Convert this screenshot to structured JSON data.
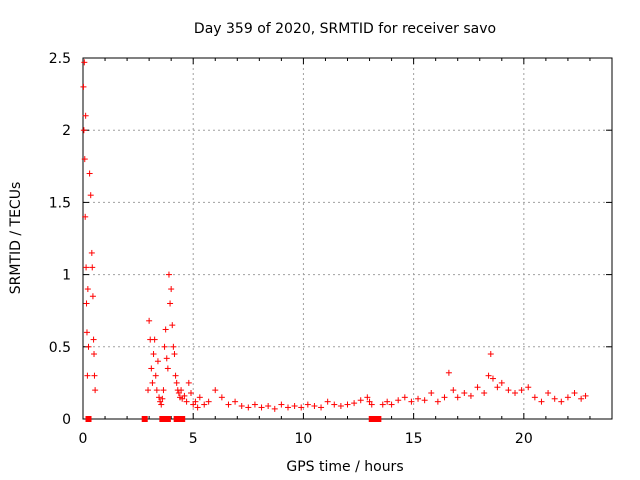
{
  "chart_data": {
    "type": "scatter",
    "title": "Day 359 of 2020, SRMTID for receiver savo",
    "xlabel": "GPS time / hours",
    "ylabel": "SRMTID / TECUs",
    "xlim": [
      0,
      24
    ],
    "ylim": [
      0,
      2.5
    ],
    "xticks": [
      0,
      5,
      10,
      15,
      20
    ],
    "yticks": [
      0,
      0.5,
      1,
      1.5,
      2,
      2.5
    ],
    "xtick_labels": [
      "0",
      "5",
      "10",
      "15",
      "20"
    ],
    "ytick_labels": [
      "0",
      "0.5",
      "1",
      "1.5",
      "2",
      "2.5"
    ],
    "grid": true,
    "marker": "+",
    "series": [
      {
        "name": "SRMTID",
        "color": "#ff0000",
        "x": [
          0.02,
          0.04,
          0.06,
          0.08,
          0.1,
          0.12,
          0.14,
          0.16,
          0.18,
          0.2,
          0.22,
          0.25,
          0.3,
          0.35,
          0.4,
          0.42,
          0.45,
          0.48,
          0.5,
          0.52,
          0.55,
          2.95,
          3.0,
          3.05,
          3.1,
          3.15,
          3.2,
          3.25,
          3.3,
          3.35,
          3.4,
          3.45,
          3.5,
          3.55,
          3.6,
          3.65,
          3.7,
          3.75,
          3.8,
          3.85,
          3.9,
          3.95,
          4.0,
          4.05,
          4.1,
          4.15,
          4.2,
          4.25,
          4.3,
          4.35,
          4.4,
          4.45,
          4.5,
          4.6,
          4.7,
          4.8,
          4.9,
          5.0,
          5.1,
          5.2,
          5.3,
          5.5,
          5.7,
          6.0,
          6.3,
          6.6,
          6.9,
          7.2,
          7.5,
          7.8,
          8.1,
          8.4,
          8.7,
          9.0,
          9.3,
          9.6,
          9.9,
          10.2,
          10.5,
          10.8,
          11.1,
          11.4,
          11.7,
          12.0,
          12.3,
          12.6,
          12.9,
          13.0,
          13.1,
          13.6,
          13.8,
          14.0,
          14.3,
          14.6,
          14.9,
          15.2,
          15.5,
          15.8,
          16.1,
          16.4,
          16.6,
          16.8,
          17.0,
          17.3,
          17.6,
          17.9,
          18.2,
          18.4,
          18.5,
          18.6,
          18.8,
          19.0,
          19.3,
          19.6,
          19.9,
          20.2,
          20.5,
          20.8,
          21.1,
          21.4,
          21.7,
          22.0,
          22.3,
          22.6,
          22.8
        ],
        "y": [
          2.3,
          2.0,
          2.47,
          1.8,
          1.4,
          2.1,
          1.05,
          0.8,
          0.6,
          0.3,
          0.9,
          0.5,
          1.7,
          1.55,
          1.15,
          1.05,
          0.85,
          0.55,
          0.45,
          0.3,
          0.2,
          0.2,
          0.68,
          0.55,
          0.35,
          0.25,
          0.45,
          0.55,
          0.3,
          0.2,
          0.4,
          0.15,
          0.12,
          0.1,
          0.14,
          0.2,
          0.5,
          0.62,
          0.42,
          0.35,
          1.0,
          0.8,
          0.9,
          0.65,
          0.5,
          0.45,
          0.3,
          0.25,
          0.2,
          0.18,
          0.15,
          0.2,
          0.14,
          0.16,
          0.12,
          0.25,
          0.18,
          0.1,
          0.12,
          0.08,
          0.15,
          0.1,
          0.12,
          0.2,
          0.15,
          0.1,
          0.12,
          0.09,
          0.08,
          0.1,
          0.08,
          0.09,
          0.07,
          0.1,
          0.08,
          0.09,
          0.08,
          0.1,
          0.09,
          0.08,
          0.12,
          0.1,
          0.09,
          0.1,
          0.11,
          0.13,
          0.15,
          0.12,
          0.1,
          0.1,
          0.12,
          0.1,
          0.13,
          0.15,
          0.12,
          0.14,
          0.13,
          0.18,
          0.12,
          0.15,
          0.32,
          0.2,
          0.15,
          0.18,
          0.16,
          0.22,
          0.18,
          0.3,
          0.45,
          0.28,
          0.22,
          0.25,
          0.2,
          0.18,
          0.2,
          0.22,
          0.15,
          0.12,
          0.18,
          0.14,
          0.12,
          0.15,
          0.18,
          0.14,
          0.16
        ]
      }
    ],
    "zero_markers_x": [
      0.25,
      2.8,
      3.6,
      3.85,
      4.25,
      4.45,
      4.5,
      13.1,
      13.2,
      13.3,
      13.4
    ]
  }
}
